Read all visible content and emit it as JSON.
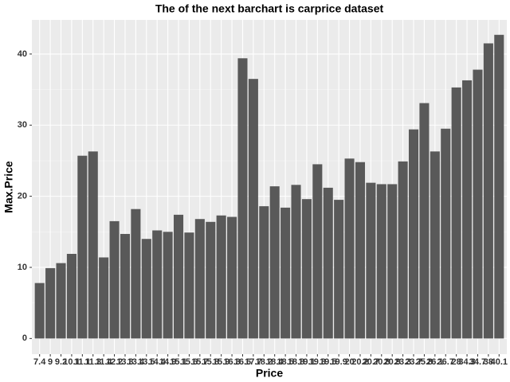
{
  "chart_data": {
    "type": "bar",
    "title": "The of the next barchart is carprice dataset",
    "x_label": "Price",
    "y_label": "Max.Price",
    "categories": [
      "7.4",
      "9",
      "9.2",
      "10.1",
      "11.1",
      "11.3",
      "11.4",
      "12.2",
      "13.3",
      "13.4",
      "13.5",
      "14.4",
      "14.9",
      "15.1",
      "15.6",
      "15.7",
      "15.8",
      "15.9",
      "16.3",
      "16.6",
      "17.7",
      "18.2",
      "18.4",
      "18.5",
      "18.8",
      "19.1",
      "19.3",
      "19.5",
      "19.9",
      "20",
      "20.2",
      "20.7",
      "20.8",
      "20.9",
      "23.3",
      "23.7",
      "25.8",
      "26.1",
      "26.7",
      "28",
      "34.3",
      "34.7",
      "38",
      "40.1"
    ],
    "values": [
      7.8,
      9.9,
      10.6,
      11.9,
      25.7,
      26.3,
      11.4,
      16.5,
      14.7,
      18.2,
      14.0,
      15.2,
      15.0,
      17.4,
      14.9,
      16.8,
      16.4,
      17.3,
      17.1,
      39.4,
      36.5,
      18.6,
      21.4,
      18.4,
      21.6,
      19.6,
      24.5,
      21.2,
      19.5,
      25.3,
      24.8,
      21.9,
      21.7,
      21.7,
      24.9,
      29.4,
      33.1,
      26.3,
      29.5,
      35.3,
      36.3,
      37.8,
      41.5,
      42.7
    ],
    "color": "#595959",
    "ylim": [
      -2.2,
      44.8
    ],
    "yticks": [
      0,
      10,
      20,
      30,
      40
    ],
    "grid": true
  }
}
